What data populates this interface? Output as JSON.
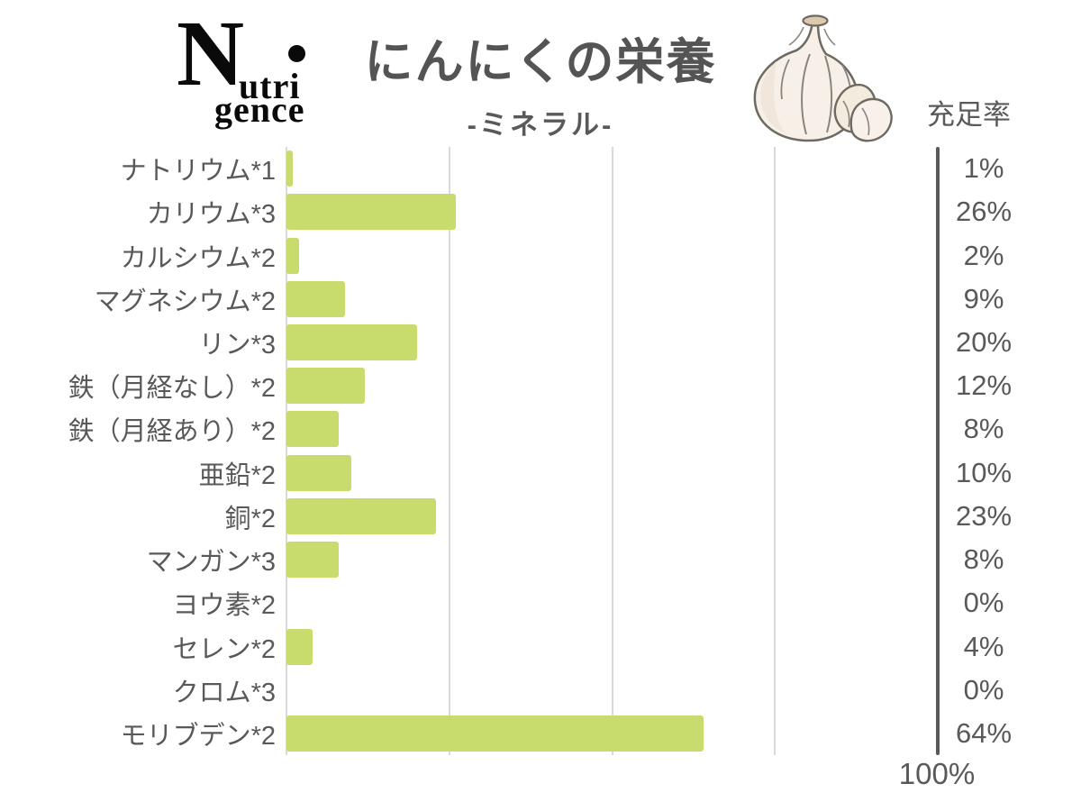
{
  "brand": {
    "initial": "N",
    "top": "utri",
    "bottom": "gence"
  },
  "header": {
    "title": "にんにくの栄養",
    "subtitle": "-ミネラル-",
    "axis_label": "充足率",
    "max_label": "100%"
  },
  "chart_data": {
    "type": "bar",
    "orientation": "horizontal",
    "title": "にんにくの栄養",
    "subtitle": "-ミネラル-",
    "value_axis_label": "充足率",
    "categories": [
      "ナトリウム*1",
      "カリウム*3",
      "カルシウム*2",
      "マグネシウム*2",
      "リン*3",
      "鉄（月経なし）*2",
      "鉄（月経あり）*2",
      "亜鉛*2",
      "銅*2",
      "マンガン*3",
      "ヨウ素*2",
      "セレン*2",
      "クロム*3",
      "モリブデン*2"
    ],
    "values": [
      1,
      26,
      2,
      9,
      20,
      12,
      8,
      10,
      23,
      8,
      0,
      4,
      0,
      64
    ],
    "value_labels": [
      "1%",
      "26%",
      "2%",
      "9%",
      "20%",
      "12%",
      "8%",
      "10%",
      "23%",
      "8%",
      "0%",
      "4%",
      "0%",
      "64%"
    ],
    "xlim": [
      0,
      100
    ],
    "gridlines_pct": [
      0,
      25,
      50,
      75
    ],
    "grid_on": true,
    "legend": "none",
    "bar_color": "#c8dc6e",
    "grid_color": "#d9d9d9",
    "axis_color": "#595959",
    "text_color": "#595959"
  }
}
